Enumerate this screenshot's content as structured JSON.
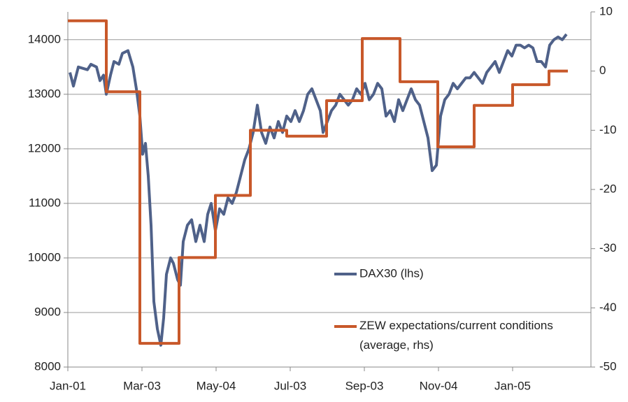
{
  "chart_data": {
    "type": "line",
    "xlim": [
      0,
      748
    ],
    "xticks": [
      {
        "value": 0,
        "label": "Jan-01"
      },
      {
        "value": 106,
        "label": "Mar-03"
      },
      {
        "value": 212,
        "label": "May-04"
      },
      {
        "value": 318,
        "label": "Jul-03"
      },
      {
        "value": 424,
        "label": "Sep-03"
      },
      {
        "value": 530,
        "label": "Nov-04"
      },
      {
        "value": 636,
        "label": "Jan-05"
      }
    ],
    "ylim": [
      8000,
      14510
    ],
    "yticks": [
      8000,
      9000,
      10000,
      11000,
      12000,
      13000,
      14000
    ],
    "y2lim": [
      -50,
      10
    ],
    "y2ticks": [
      -50,
      -40,
      -30,
      -20,
      -10,
      0,
      10
    ],
    "grid": true,
    "series": [
      {
        "name": "DAX30 (lhs)",
        "color": "#4f6189",
        "x": [
          3,
          8,
          15,
          28,
          33,
          41,
          46,
          51,
          55,
          61,
          66,
          73,
          78,
          86,
          93,
          98,
          103,
          107,
          111,
          115,
          119,
          123,
          128,
          133,
          137,
          141,
          147,
          151,
          157,
          161,
          165,
          171,
          177,
          183,
          189,
          195,
          200,
          205,
          211,
          217,
          223,
          229,
          235,
          241,
          247,
          253,
          259,
          265,
          271,
          277,
          283,
          289,
          295,
          301,
          307,
          313,
          319,
          325,
          331,
          337,
          343,
          349,
          355,
          361,
          365,
          371,
          377,
          383,
          389,
          395,
          401,
          407,
          413,
          419,
          425,
          431,
          437,
          443,
          449,
          455,
          461,
          467,
          473,
          479,
          485,
          491,
          497,
          503,
          509,
          515,
          521,
          527,
          533,
          539,
          545,
          551,
          557,
          563,
          569,
          575,
          581,
          587,
          593,
          599,
          605,
          611,
          617,
          623,
          629,
          635,
          641,
          647,
          653,
          659,
          665,
          671,
          677,
          683,
          689,
          695,
          701,
          707,
          713
        ],
        "values": [
          13400,
          13150,
          13500,
          13450,
          13550,
          13500,
          13250,
          13350,
          13000,
          13350,
          13600,
          13550,
          13750,
          13800,
          13500,
          13100,
          12600,
          11900,
          12100,
          11500,
          10600,
          9200,
          8700,
          8400,
          8900,
          9700,
          10000,
          9900,
          9600,
          9500,
          10300,
          10600,
          10700,
          10300,
          10600,
          10300,
          10800,
          11000,
          10500,
          10900,
          10800,
          11100,
          11000,
          11200,
          11500,
          11800,
          12000,
          12300,
          12800,
          12300,
          12100,
          12400,
          12200,
          12500,
          12300,
          12600,
          12500,
          12700,
          12500,
          12700,
          13000,
          13100,
          12900,
          12700,
          12300,
          12500,
          12700,
          12800,
          13000,
          12900,
          12800,
          12900,
          13100,
          13000,
          13200,
          12900,
          13000,
          13200,
          13100,
          12600,
          12700,
          12500,
          12900,
          12700,
          12900,
          13100,
          12900,
          12800,
          12500,
          12200,
          11600,
          11700,
          12600,
          12900,
          13000,
          13200,
          13100,
          13200,
          13300,
          13300,
          13400,
          13300,
          13200,
          13400,
          13500,
          13600,
          13400,
          13600,
          13800,
          13700,
          13900,
          13900,
          13850,
          13900,
          13850,
          13600,
          13600,
          13500,
          13900,
          14000,
          14050,
          14000,
          14100
        ]
      },
      {
        "name": "ZEW expectations/current conditions (average, rhs)",
        "color": "#c8582a",
        "axis": "y2",
        "x": [
          0,
          55,
          55,
          103,
          103,
          159,
          159,
          211,
          211,
          261,
          261,
          313,
          313,
          370,
          370,
          421,
          421,
          475,
          475,
          529,
          529,
          581,
          581,
          636,
          636,
          688,
          688,
          715
        ],
        "values": [
          8.5,
          8.5,
          -3.5,
          -3.5,
          -46,
          -46,
          -31.5,
          -31.5,
          -21,
          -21,
          -10,
          -10,
          -11,
          -11,
          -5,
          -5,
          5.5,
          5.5,
          -1.8,
          -1.8,
          -12.8,
          -12.8,
          -5.8,
          -5.8,
          -2.3,
          -2.3,
          0,
          0
        ]
      }
    ]
  }
}
